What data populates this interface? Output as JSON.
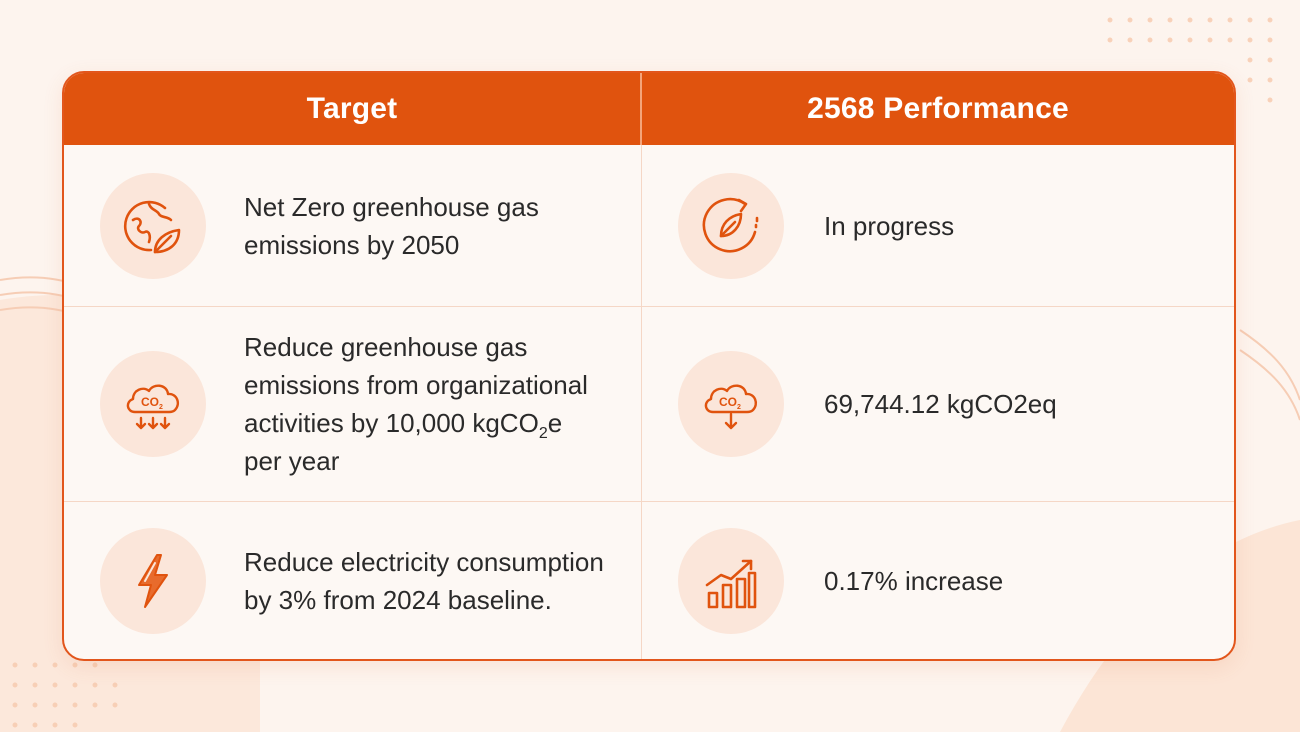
{
  "header": {
    "target_label": "Target",
    "performance_label": "2568 Performance"
  },
  "rows": [
    {
      "target_icon": "globe-leaf-icon",
      "target_text": "Net Zero greenhouse gas emissions by 2050",
      "performance_icon": "leaf-cycle-icon",
      "performance_text": "In progress"
    },
    {
      "target_icon": "co2-cloud-reduction-icon",
      "target_text_main": "Reduce greenhouse gas emissions from organizational activities by 10,000 kgCO",
      "target_text_sub": "2",
      "target_text_tail": "e per year",
      "performance_icon": "co2-cloud-down-icon",
      "performance_text": "69,744.12 kgCO2eq"
    },
    {
      "target_icon": "lightning-icon",
      "target_text": "Reduce electricity consumption by 3% from 2024 baseline.",
      "performance_icon": "bar-chart-up-icon",
      "performance_text": "0.17% increase"
    }
  ],
  "icon_labels": {
    "co2_a": "CO",
    "co2_a_sub": "2",
    "co2_b": "CO",
    "co2_b_sub": "2"
  },
  "colors": {
    "accent": "#e0530e",
    "icon_bg": "#fbe6da",
    "text": "#2a2a2a",
    "background": "#fdf4ee"
  }
}
